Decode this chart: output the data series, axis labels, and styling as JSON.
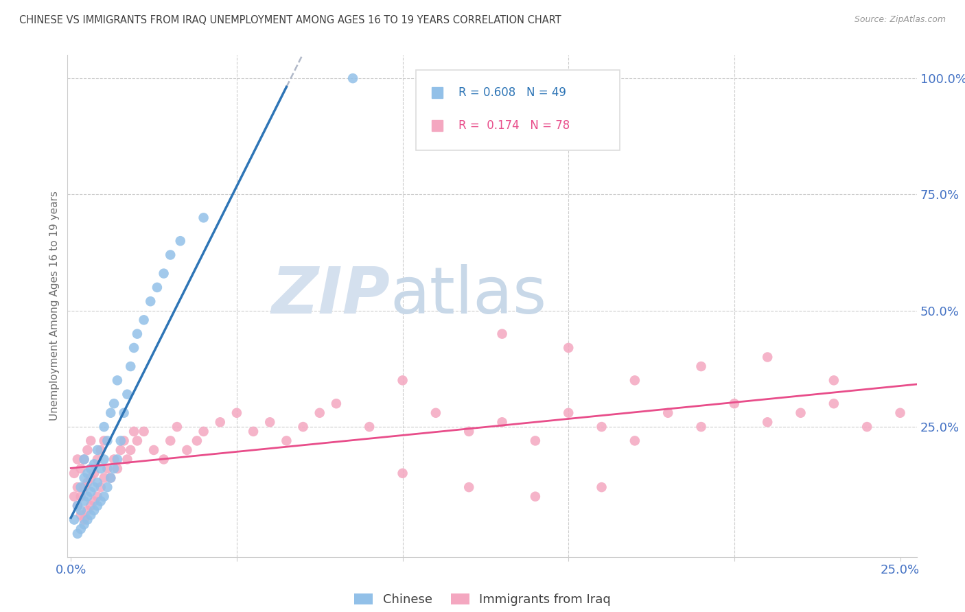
{
  "title": "CHINESE VS IMMIGRANTS FROM IRAQ UNEMPLOYMENT AMONG AGES 16 TO 19 YEARS CORRELATION CHART",
  "source": "Source: ZipAtlas.com",
  "ylabel": "Unemployment Among Ages 16 to 19 years",
  "xlim": [
    -0.001,
    0.255
  ],
  "ylim": [
    -0.03,
    1.05
  ],
  "chinese_R": 0.608,
  "chinese_N": 49,
  "iraq_R": 0.174,
  "iraq_N": 78,
  "chinese_color": "#92c0e8",
  "iraq_color": "#f4a7c0",
  "chinese_line_color": "#2e75b6",
  "iraq_line_color": "#e84d8a",
  "dash_color": "#b0b8c8",
  "watermark_zip_color": "#d4e0ee",
  "watermark_atlas_color": "#c8d8e8",
  "background_color": "#ffffff",
  "grid_color": "#cccccc",
  "title_color": "#404040",
  "axis_label_color": "#4472c4",
  "chinese_x": [
    0.001,
    0.002,
    0.002,
    0.003,
    0.003,
    0.003,
    0.004,
    0.004,
    0.004,
    0.004,
    0.005,
    0.005,
    0.005,
    0.006,
    0.006,
    0.006,
    0.007,
    0.007,
    0.007,
    0.008,
    0.008,
    0.008,
    0.009,
    0.009,
    0.01,
    0.01,
    0.01,
    0.011,
    0.011,
    0.012,
    0.012,
    0.013,
    0.013,
    0.014,
    0.014,
    0.015,
    0.016,
    0.017,
    0.018,
    0.019,
    0.02,
    0.022,
    0.024,
    0.026,
    0.028,
    0.03,
    0.033,
    0.04,
    0.085
  ],
  "chinese_y": [
    0.05,
    0.02,
    0.08,
    0.03,
    0.07,
    0.12,
    0.04,
    0.09,
    0.14,
    0.18,
    0.05,
    0.1,
    0.15,
    0.06,
    0.11,
    0.16,
    0.07,
    0.12,
    0.17,
    0.08,
    0.13,
    0.2,
    0.09,
    0.16,
    0.1,
    0.18,
    0.25,
    0.12,
    0.22,
    0.14,
    0.28,
    0.16,
    0.3,
    0.18,
    0.35,
    0.22,
    0.28,
    0.32,
    0.38,
    0.42,
    0.45,
    0.48,
    0.52,
    0.55,
    0.58,
    0.62,
    0.65,
    0.7,
    1.0
  ],
  "iraq_x": [
    0.001,
    0.001,
    0.002,
    0.002,
    0.002,
    0.003,
    0.003,
    0.003,
    0.004,
    0.004,
    0.004,
    0.005,
    0.005,
    0.005,
    0.006,
    0.006,
    0.006,
    0.007,
    0.007,
    0.008,
    0.008,
    0.009,
    0.009,
    0.01,
    0.01,
    0.011,
    0.012,
    0.013,
    0.014,
    0.015,
    0.016,
    0.017,
    0.018,
    0.019,
    0.02,
    0.022,
    0.025,
    0.028,
    0.03,
    0.032,
    0.035,
    0.038,
    0.04,
    0.045,
    0.05,
    0.055,
    0.06,
    0.065,
    0.07,
    0.075,
    0.08,
    0.09,
    0.1,
    0.11,
    0.12,
    0.13,
    0.14,
    0.15,
    0.16,
    0.17,
    0.18,
    0.19,
    0.2,
    0.21,
    0.22,
    0.23,
    0.24,
    0.25,
    0.13,
    0.15,
    0.17,
    0.19,
    0.21,
    0.23,
    0.1,
    0.12,
    0.14,
    0.16
  ],
  "iraq_y": [
    0.1,
    0.15,
    0.08,
    0.12,
    0.18,
    0.06,
    0.1,
    0.16,
    0.05,
    0.12,
    0.18,
    0.07,
    0.13,
    0.2,
    0.08,
    0.14,
    0.22,
    0.09,
    0.15,
    0.1,
    0.18,
    0.12,
    0.2,
    0.14,
    0.22,
    0.16,
    0.14,
    0.18,
    0.16,
    0.2,
    0.22,
    0.18,
    0.2,
    0.24,
    0.22,
    0.24,
    0.2,
    0.18,
    0.22,
    0.25,
    0.2,
    0.22,
    0.24,
    0.26,
    0.28,
    0.24,
    0.26,
    0.22,
    0.25,
    0.28,
    0.3,
    0.25,
    0.35,
    0.28,
    0.24,
    0.26,
    0.22,
    0.28,
    0.25,
    0.22,
    0.28,
    0.25,
    0.3,
    0.26,
    0.28,
    0.3,
    0.25,
    0.28,
    0.45,
    0.42,
    0.35,
    0.38,
    0.4,
    0.35,
    0.15,
    0.12,
    0.1,
    0.12
  ]
}
